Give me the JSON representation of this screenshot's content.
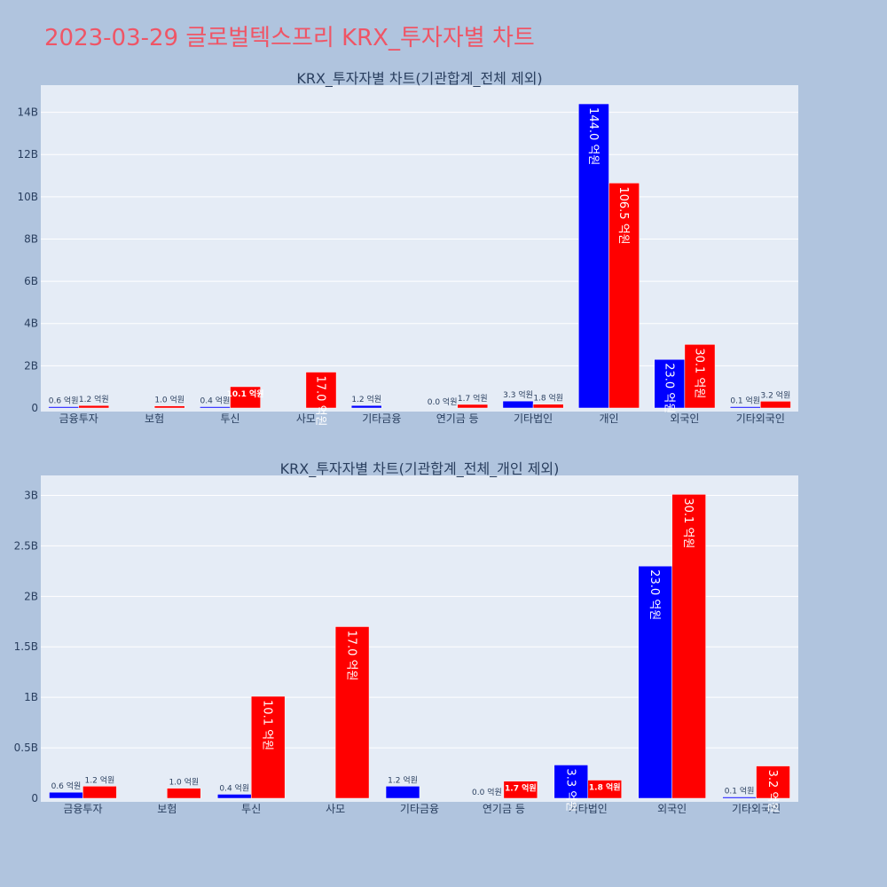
{
  "title": "2023-03-29 글로벌텍스프리 KRX_투자자별 차트",
  "colors": {
    "background": "#b0c4de",
    "plot_bg": "#e5ecf6",
    "title": "#ef5566",
    "buy": "#0000ff",
    "sell": "#ff0000"
  },
  "chart_data": [
    {
      "type": "bar",
      "title": "KRX_투자자별 차트(기관합계_전체 제외)",
      "categories": [
        "금융투자",
        "보험",
        "투신",
        "사모",
        "기타금융",
        "연기금 등",
        "기타법인",
        "개인",
        "외국인",
        "기타외국인"
      ],
      "ylim": [
        0,
        15200000000
      ],
      "yticks": [
        0,
        2000000000,
        4000000000,
        6000000000,
        8000000000,
        10000000000,
        12000000000,
        14000000000
      ],
      "ytick_labels": [
        "0",
        "2B",
        "4B",
        "6B",
        "8B",
        "10B",
        "12B",
        "14B"
      ],
      "grid": true,
      "series": [
        {
          "color": "#0000ff",
          "values": [
            60000000,
            0,
            40000000,
            0,
            120000000,
            0,
            330000000,
            14400000000,
            2300000000,
            10000000
          ],
          "labels": [
            "0.6 억원",
            "",
            "0.4 억원",
            "",
            "1.2 억원",
            "0.0 억원",
            "3.3 억원",
            "144.0 억원",
            "23.0 억원",
            "0.1 억원"
          ]
        },
        {
          "color": "#ff0000",
          "values": [
            120000000,
            100000000,
            1010000000,
            1700000000,
            0,
            170000000,
            180000000,
            10650000000,
            3010000000,
            320000000
          ],
          "labels": [
            "1.2 억원",
            "1.0 억원",
            "10.1 억원",
            "17.0 억원",
            "",
            "1.7 억원",
            "1.8 억원",
            "106.5 억원",
            "30.1 억원",
            "3.2 억원"
          ]
        }
      ]
    },
    {
      "type": "bar",
      "title": "KRX_투자자별 차트(기관합계_전체_개인 제외)",
      "categories": [
        "금융투자",
        "보험",
        "투신",
        "사모",
        "기타금융",
        "연기금 등",
        "기타법인",
        "외국인",
        "기타외국인"
      ],
      "ylim": [
        0,
        3180000000
      ],
      "yticks": [
        0,
        500000000,
        1000000000,
        1500000000,
        2000000000,
        2500000000,
        3000000000
      ],
      "ytick_labels": [
        "0",
        "0.5B",
        "1B",
        "1.5B",
        "2B",
        "2.5B",
        "3B"
      ],
      "grid": true,
      "series": [
        {
          "color": "#0000ff",
          "values": [
            60000000,
            0,
            40000000,
            0,
            120000000,
            0,
            330000000,
            2300000000,
            10000000
          ],
          "labels": [
            "0.6 억원",
            "",
            "0.4 억원",
            "",
            "1.2 억원",
            "0.0 억원",
            "3.3 억원",
            "23.0 억원",
            "0.1 억원"
          ]
        },
        {
          "color": "#ff0000",
          "values": [
            120000000,
            100000000,
            1010000000,
            1700000000,
            0,
            170000000,
            180000000,
            3010000000,
            320000000
          ],
          "labels": [
            "1.2 억원",
            "1.0 억원",
            "10.1 억원",
            "17.0 억원",
            "",
            "1.7 억원",
            "1.8 억원",
            "30.1 억원",
            "3.2 억원"
          ]
        }
      ]
    }
  ]
}
